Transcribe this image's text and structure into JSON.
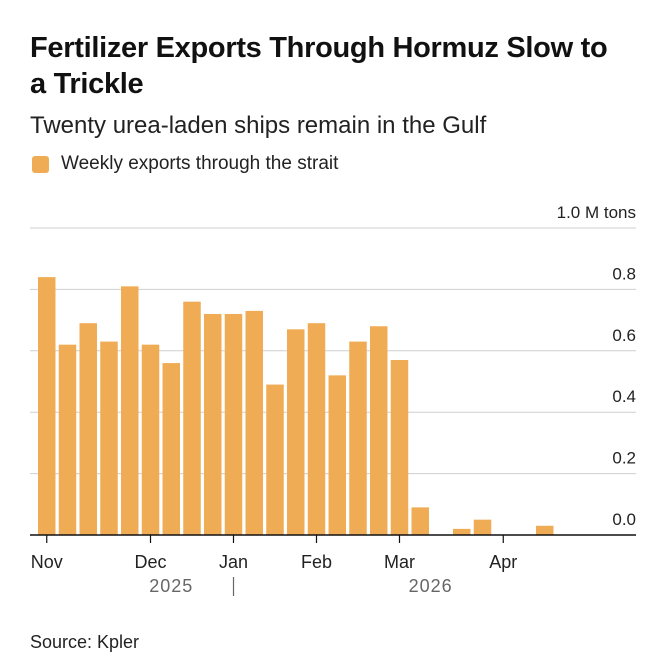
{
  "title": "Fertilizer Exports Through Hormuz Slow to a Trickle",
  "subtitle": "Twenty urea-laden ships remain in the Gulf",
  "source": "Source: Kpler",
  "colors": {
    "bar": "#F0AC55",
    "grid": "#cfcfcf",
    "axis": "#111111",
    "year": "#666666"
  },
  "chart_data": {
    "type": "bar",
    "series": [
      {
        "name": "Weekly exports through the strait",
        "values": [
          0.84,
          0.62,
          0.69,
          0.63,
          0.81,
          0.62,
          0.56,
          0.76,
          0.72,
          0.72,
          0.73,
          0.49,
          0.67,
          0.69,
          0.52,
          0.63,
          0.68,
          0.57,
          0.09,
          0.0,
          0.02,
          0.05,
          0.0,
          0.0,
          0.03
        ]
      }
    ],
    "ylim": [
      0,
      1.0
    ],
    "y_ticks": [
      {
        "value": 1.0,
        "label": "1.0 M tons"
      },
      {
        "value": 0.8,
        "label": "0.8"
      },
      {
        "value": 0.6,
        "label": "0.6"
      },
      {
        "value": 0.4,
        "label": "0.4"
      },
      {
        "value": 0.2,
        "label": "0.2"
      },
      {
        "value": 0.0,
        "label": "0.0"
      }
    ],
    "x_month_labels": [
      {
        "label": "Nov",
        "week": 0
      },
      {
        "label": "Dec",
        "week": 5
      },
      {
        "label": "Jan",
        "week": 9
      },
      {
        "label": "Feb",
        "week": 13
      },
      {
        "label": "Mar",
        "week": 17
      },
      {
        "label": "Apr",
        "week": 22
      }
    ],
    "x_year_labels": [
      {
        "label": "2025",
        "week": 6
      },
      {
        "label": "2026",
        "week": 18.5
      }
    ],
    "year_divider_week": 9,
    "grid": true,
    "legend": "top-left"
  }
}
